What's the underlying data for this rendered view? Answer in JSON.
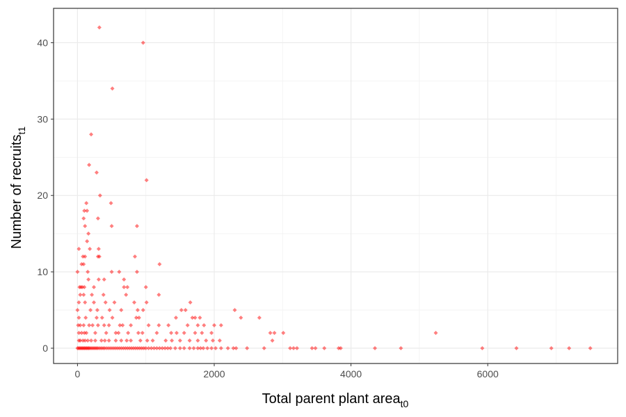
{
  "chart_data": {
    "type": "scatter",
    "title": "",
    "xlabel": "Total parent plant area",
    "xlabel_subscript": "t0",
    "ylabel": "Number of recruits",
    "ylabel_subscript": "t1",
    "xlim": [
      -350,
      7900
    ],
    "ylim": [
      -2,
      44.5
    ],
    "x_ticks": [
      0,
      2000,
      4000,
      6000
    ],
    "x_tick_labels": [
      "0",
      "2000",
      "4000",
      "6000"
    ],
    "y_ticks": [
      0,
      10,
      20,
      30,
      40
    ],
    "y_tick_labels": [
      "0",
      "10",
      "20",
      "30",
      "40"
    ],
    "grid": true,
    "legend": "none",
    "point_color": "#ff0000",
    "points": [
      [
        320,
        42
      ],
      [
        960,
        40
      ],
      [
        510,
        34
      ],
      [
        200,
        28
      ],
      [
        170,
        24
      ],
      [
        280,
        23
      ],
      [
        1010,
        22
      ],
      [
        330,
        20
      ],
      [
        130,
        19
      ],
      [
        490,
        19
      ],
      [
        100,
        18
      ],
      [
        140,
        18
      ],
      [
        300,
        17
      ],
      [
        90,
        17
      ],
      [
        110,
        16
      ],
      [
        500,
        16
      ],
      [
        870,
        16
      ],
      [
        160,
        15
      ],
      [
        140,
        14
      ],
      [
        180,
        13
      ],
      [
        20,
        13
      ],
      [
        310,
        13
      ],
      [
        80,
        12
      ],
      [
        110,
        12
      ],
      [
        300,
        12
      ],
      [
        320,
        12
      ],
      [
        840,
        12
      ],
      [
        90,
        11
      ],
      [
        1200,
        11
      ],
      [
        60,
        11
      ],
      [
        150,
        10
      ],
      [
        0,
        10
      ],
      [
        500,
        10
      ],
      [
        610,
        10
      ],
      [
        870,
        10
      ],
      [
        310,
        9
      ],
      [
        390,
        9
      ],
      [
        160,
        9
      ],
      [
        680,
        9
      ],
      [
        30,
        8
      ],
      [
        50,
        8
      ],
      [
        70,
        8
      ],
      [
        100,
        8
      ],
      [
        240,
        8
      ],
      [
        730,
        8
      ],
      [
        680,
        8
      ],
      [
        1000,
        8
      ],
      [
        210,
        7
      ],
      [
        380,
        7
      ],
      [
        710,
        7
      ],
      [
        1190,
        7
      ],
      [
        40,
        7
      ],
      [
        90,
        7
      ],
      [
        240,
        6
      ],
      [
        410,
        6
      ],
      [
        540,
        6
      ],
      [
        830,
        6
      ],
      [
        1010,
        6
      ],
      [
        1650,
        6
      ],
      [
        20,
        6
      ],
      [
        110,
        6
      ],
      [
        290,
        5
      ],
      [
        190,
        5
      ],
      [
        470,
        5
      ],
      [
        960,
        5
      ],
      [
        1520,
        5
      ],
      [
        1580,
        5
      ],
      [
        2300,
        5
      ],
      [
        0,
        5
      ],
      [
        640,
        5
      ],
      [
        880,
        5
      ],
      [
        20,
        4
      ],
      [
        120,
        4
      ],
      [
        280,
        4
      ],
      [
        510,
        4
      ],
      [
        900,
        4
      ],
      [
        1440,
        4
      ],
      [
        1680,
        4
      ],
      [
        1720,
        4
      ],
      [
        1790,
        4
      ],
      [
        2390,
        4
      ],
      [
        2660,
        4
      ],
      [
        360,
        4
      ],
      [
        860,
        4
      ],
      [
        40,
        3
      ],
      [
        90,
        3
      ],
      [
        170,
        3
      ],
      [
        220,
        3
      ],
      [
        300,
        3
      ],
      [
        390,
        3
      ],
      [
        460,
        3
      ],
      [
        620,
        3
      ],
      [
        660,
        3
      ],
      [
        780,
        3
      ],
      [
        1040,
        3
      ],
      [
        1330,
        3
      ],
      [
        1610,
        3
      ],
      [
        1760,
        3
      ],
      [
        1850,
        3
      ],
      [
        2000,
        3
      ],
      [
        2100,
        3
      ],
      [
        10,
        3
      ],
      [
        1190,
        3
      ],
      [
        20,
        2
      ],
      [
        60,
        2
      ],
      [
        130,
        2
      ],
      [
        260,
        2
      ],
      [
        420,
        2
      ],
      [
        560,
        2
      ],
      [
        740,
        2
      ],
      [
        950,
        2
      ],
      [
        1160,
        2
      ],
      [
        1370,
        2
      ],
      [
        1450,
        2
      ],
      [
        1560,
        2
      ],
      [
        1720,
        2
      ],
      [
        1820,
        2
      ],
      [
        1960,
        2
      ],
      [
        2820,
        2
      ],
      [
        2880,
        2
      ],
      [
        3010,
        2
      ],
      [
        5240,
        2
      ],
      [
        100,
        2
      ],
      [
        600,
        2
      ],
      [
        890,
        2
      ],
      [
        20,
        1
      ],
      [
        40,
        1
      ],
      [
        80,
        1
      ],
      [
        150,
        1
      ],
      [
        200,
        1
      ],
      [
        260,
        1
      ],
      [
        350,
        1
      ],
      [
        460,
        1
      ],
      [
        560,
        1
      ],
      [
        640,
        1
      ],
      [
        720,
        1
      ],
      [
        780,
        1
      ],
      [
        920,
        1
      ],
      [
        1100,
        1
      ],
      [
        1290,
        1
      ],
      [
        1380,
        1
      ],
      [
        1500,
        1
      ],
      [
        1640,
        1
      ],
      [
        1760,
        1
      ],
      [
        1880,
        1
      ],
      [
        1980,
        1
      ],
      [
        2080,
        1
      ],
      [
        2850,
        1
      ],
      [
        110,
        1
      ],
      [
        400,
        1
      ],
      [
        1020,
        1
      ],
      [
        0,
        0
      ],
      [
        15,
        0
      ],
      [
        30,
        0
      ],
      [
        45,
        0
      ],
      [
        60,
        0
      ],
      [
        75,
        0
      ],
      [
        90,
        0
      ],
      [
        105,
        0
      ],
      [
        120,
        0
      ],
      [
        135,
        0
      ],
      [
        150,
        0
      ],
      [
        165,
        0
      ],
      [
        180,
        0
      ],
      [
        200,
        0
      ],
      [
        220,
        0
      ],
      [
        240,
        0
      ],
      [
        260,
        0
      ],
      [
        280,
        0
      ],
      [
        300,
        0
      ],
      [
        325,
        0
      ],
      [
        350,
        0
      ],
      [
        375,
        0
      ],
      [
        400,
        0
      ],
      [
        430,
        0
      ],
      [
        460,
        0
      ],
      [
        490,
        0
      ],
      [
        520,
        0
      ],
      [
        550,
        0
      ],
      [
        580,
        0
      ],
      [
        610,
        0
      ],
      [
        640,
        0
      ],
      [
        670,
        0
      ],
      [
        700,
        0
      ],
      [
        730,
        0
      ],
      [
        760,
        0
      ],
      [
        790,
        0
      ],
      [
        820,
        0
      ],
      [
        850,
        0
      ],
      [
        880,
        0
      ],
      [
        910,
        0
      ],
      [
        940,
        0
      ],
      [
        970,
        0
      ],
      [
        1000,
        0
      ],
      [
        1040,
        0
      ],
      [
        1080,
        0
      ],
      [
        1120,
        0
      ],
      [
        1160,
        0
      ],
      [
        1200,
        0
      ],
      [
        1240,
        0
      ],
      [
        1280,
        0
      ],
      [
        1320,
        0
      ],
      [
        1360,
        0
      ],
      [
        1430,
        0
      ],
      [
        1500,
        0
      ],
      [
        1560,
        0
      ],
      [
        1640,
        0
      ],
      [
        1700,
        0
      ],
      [
        1760,
        0
      ],
      [
        1800,
        0
      ],
      [
        1840,
        0
      ],
      [
        1900,
        0
      ],
      [
        1960,
        0
      ],
      [
        2020,
        0
      ],
      [
        2100,
        0
      ],
      [
        2200,
        0
      ],
      [
        2280,
        0
      ],
      [
        2320,
        0
      ],
      [
        2480,
        0
      ],
      [
        2730,
        0
      ],
      [
        3110,
        0
      ],
      [
        3160,
        0
      ],
      [
        3210,
        0
      ],
      [
        3430,
        0
      ],
      [
        3480,
        0
      ],
      [
        3610,
        0
      ],
      [
        3820,
        0
      ],
      [
        3850,
        0
      ],
      [
        4350,
        0
      ],
      [
        4730,
        0
      ],
      [
        5920,
        0
      ],
      [
        6420,
        0
      ],
      [
        6930,
        0
      ],
      [
        7190,
        0
      ],
      [
        7500,
        0
      ]
    ]
  }
}
